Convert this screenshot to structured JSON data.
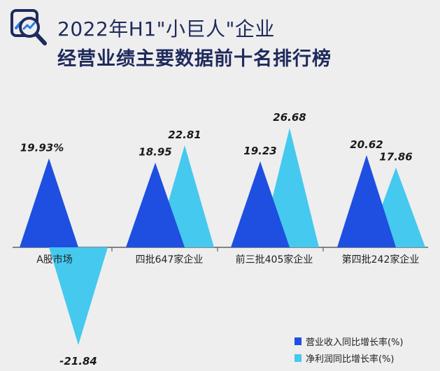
{
  "header": {
    "title_line1": "2022年H1\"小巨人\"企业",
    "title_line2": "经营业绩主要数据前十名排行榜"
  },
  "colors": {
    "revenue": "#1e4fe0",
    "profit": "#45c9ee",
    "text": "#1f2a5c",
    "axis": "#444444"
  },
  "legend": {
    "revenue_label": "营业收入同比增长率(%)",
    "profit_label": "净利润同比增长率(%)"
  },
  "chart_data": {
    "type": "bar",
    "categories": [
      "A股市场",
      "四批647家企业",
      "前三批405家企业",
      "第四批242家企业"
    ],
    "series": [
      {
        "name": "营业收入同比增长率(%)",
        "values": [
          19.93,
          18.95,
          19.23,
          20.62
        ],
        "labels": [
          "19.93%",
          "18.95",
          "19.23",
          "20.62"
        ]
      },
      {
        "name": "净利润同比增长率(%)",
        "values": [
          -21.84,
          22.81,
          26.68,
          17.86
        ],
        "labels": [
          "-21.84",
          "22.81",
          "26.68",
          "17.86"
        ]
      }
    ],
    "ylim": [
      -25,
      28
    ],
    "grid": false,
    "legend_position": "bottom-right"
  }
}
